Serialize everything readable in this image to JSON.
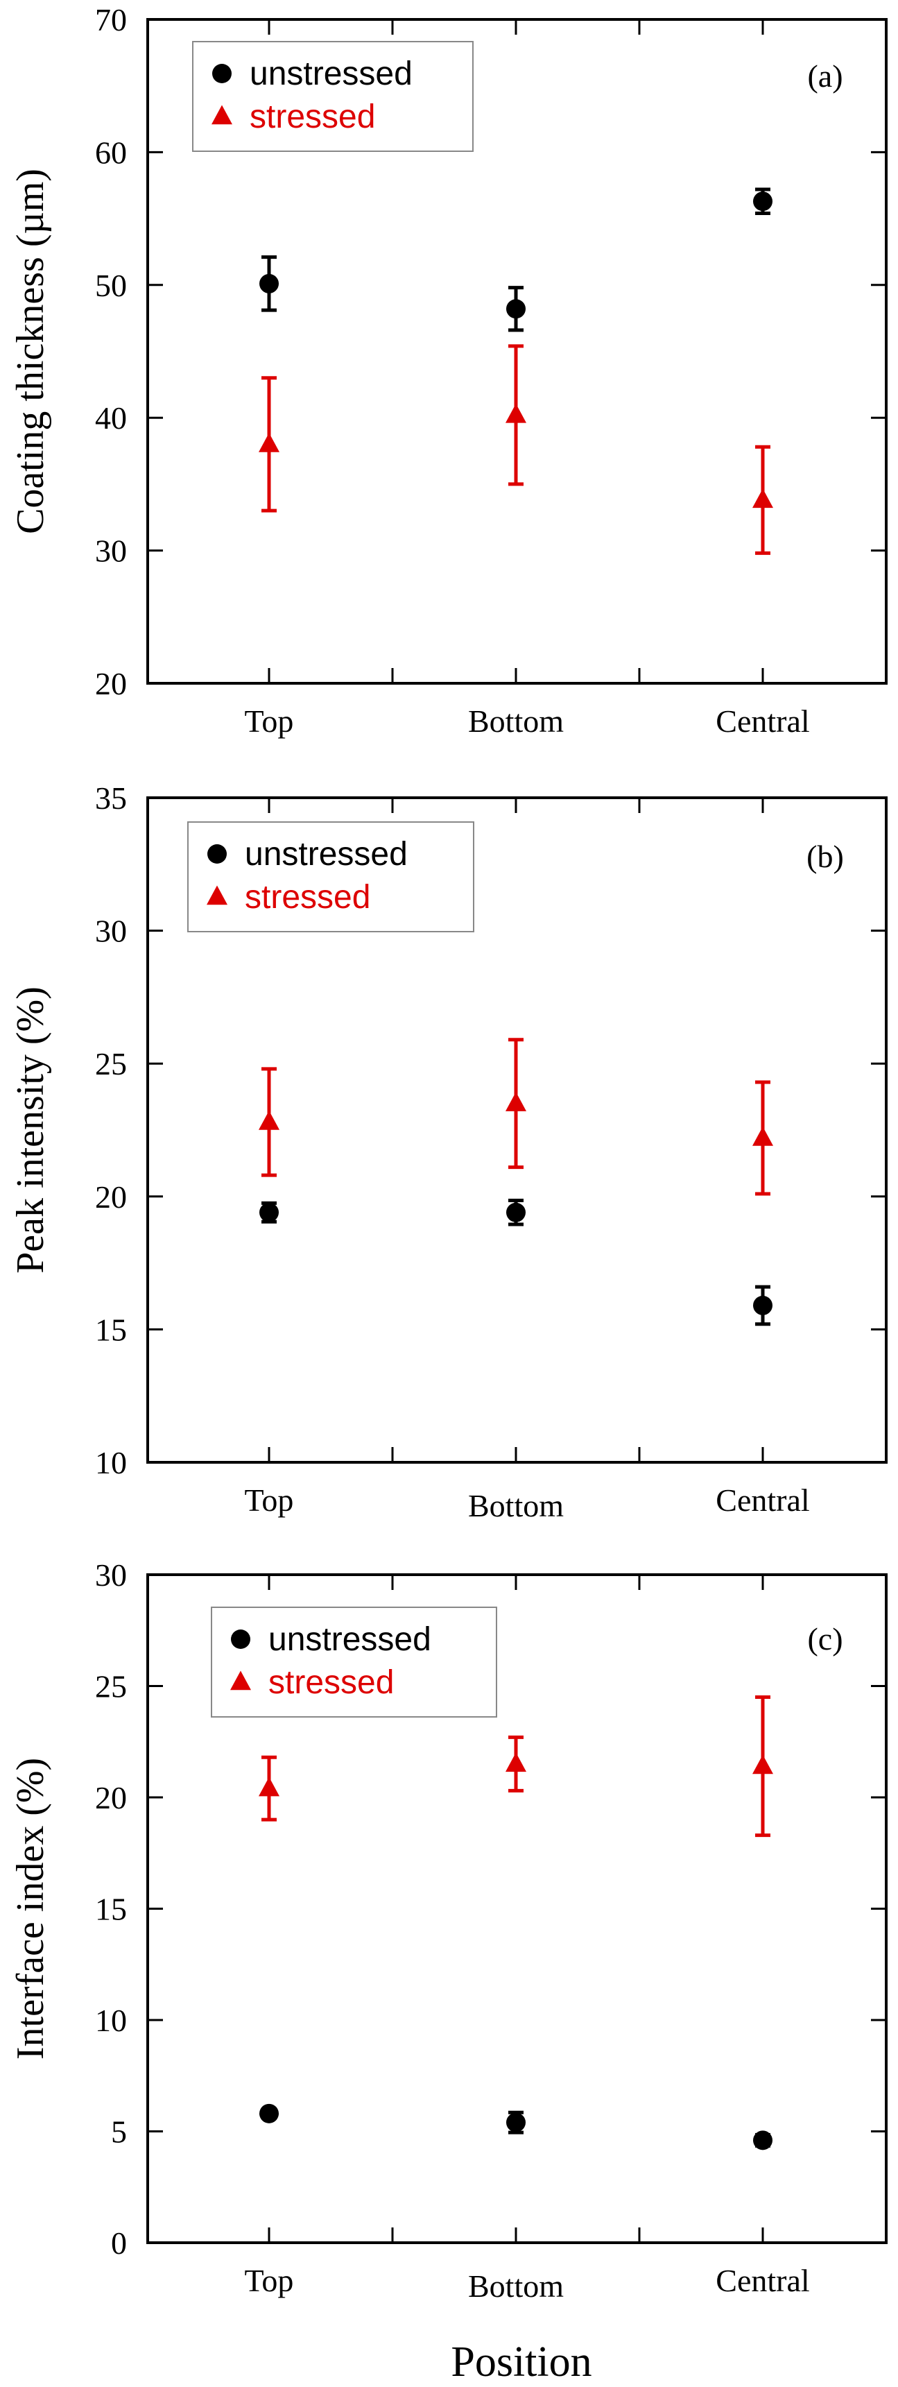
{
  "colors": {
    "unstressed": "#000000",
    "stressed": "#dd0000",
    "axis": "#000000",
    "legend_border": "#888888"
  },
  "icons": {
    "unstressed": "filled-circle-marker",
    "stressed": "filled-triangle-marker"
  },
  "xlabel": "Position",
  "chart_data": [
    {
      "type": "scatter",
      "panel_label": "(a)",
      "ylabel": "Coating thickness (µm)",
      "ylim": [
        20,
        70
      ],
      "yticks": [
        20,
        30,
        40,
        50,
        60,
        70
      ],
      "categories": [
        "Top",
        "Bottom",
        "Central"
      ],
      "legend": {
        "placement": "top-left",
        "entries": [
          "unstressed",
          "stressed"
        ]
      },
      "series": [
        {
          "name": "unstressed",
          "values": [
            50.1,
            48.2,
            56.3
          ],
          "err": [
            2.0,
            1.6,
            0.9
          ]
        },
        {
          "name": "stressed",
          "values": [
            38.0,
            40.2,
            33.8
          ],
          "err": [
            5.0,
            5.2,
            4.0
          ]
        }
      ]
    },
    {
      "type": "scatter",
      "panel_label": "(b)",
      "ylabel": "Peak intensity (%)",
      "ylim": [
        10,
        35
      ],
      "yticks": [
        10,
        15,
        20,
        25,
        30,
        35
      ],
      "categories": [
        "Top",
        "Bottom",
        "Central"
      ],
      "legend": {
        "placement": "top-left",
        "entries": [
          "unstressed",
          "stressed"
        ]
      },
      "series": [
        {
          "name": "unstressed",
          "values": [
            19.4,
            19.4,
            15.9
          ],
          "err": [
            0.35,
            0.45,
            0.7
          ]
        },
        {
          "name": "stressed",
          "values": [
            22.8,
            23.5,
            22.2
          ],
          "err": [
            2.0,
            2.4,
            2.1
          ]
        }
      ]
    },
    {
      "type": "scatter",
      "panel_label": "(c)",
      "ylabel": "Interface index (%)",
      "ylim": [
        0,
        30
      ],
      "yticks": [
        0,
        5,
        10,
        15,
        20,
        25,
        30
      ],
      "categories": [
        "Top",
        "Bottom",
        "Central"
      ],
      "legend": {
        "placement": "top-left",
        "entries": [
          "unstressed",
          "stressed"
        ]
      },
      "series": [
        {
          "name": "unstressed",
          "values": [
            5.8,
            5.4,
            4.6
          ],
          "err": [
            0.2,
            0.45,
            0.25
          ]
        },
        {
          "name": "stressed",
          "values": [
            20.4,
            21.5,
            21.4
          ],
          "err": [
            1.4,
            1.2,
            3.1
          ]
        }
      ]
    }
  ]
}
